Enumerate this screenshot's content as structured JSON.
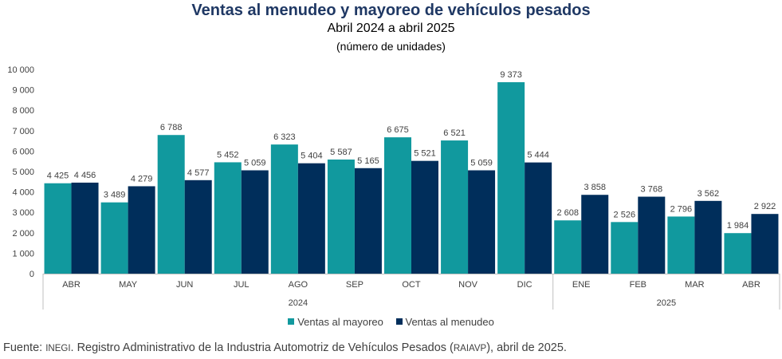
{
  "colors": {
    "mayoreo": "#11999e",
    "menudeo": "#002e5b",
    "title": "#1f3864"
  },
  "header": {
    "title": "Ventas al menudeo y mayoreo de vehículos pesados",
    "subtitle": "Abril 2024 a abril 2025",
    "unit": "(número de unidades)"
  },
  "chart_data": {
    "type": "bar",
    "categories": [
      "ABR",
      "MAY",
      "JUN",
      "JUL",
      "AGO",
      "SEP",
      "OCT",
      "NOV",
      "DIC",
      "ENE",
      "FEB",
      "MAR",
      "ABR"
    ],
    "year_groups": [
      {
        "label": "2024",
        "count": 9
      },
      {
        "label": "2025",
        "count": 4
      }
    ],
    "series": [
      {
        "name": "Ventas al mayoreo",
        "values": [
          4425,
          3489,
          6788,
          5452,
          6323,
          5587,
          6675,
          6521,
          9373,
          2608,
          2526,
          2796,
          1984
        ],
        "labels": [
          "4 425",
          "3 489",
          "6 788",
          "5 452",
          "6 323",
          "5 587",
          "6 675",
          "6 521",
          "9 373",
          "2 608",
          "2 526",
          "2 796",
          "1 984"
        ]
      },
      {
        "name": "Ventas al menudeo",
        "values": [
          4456,
          4279,
          4577,
          5059,
          5404,
          5165,
          5521,
          5059,
          5444,
          3858,
          3768,
          3562,
          2922
        ],
        "labels": [
          "4 456",
          "4 279",
          "4 577",
          "5 059",
          "5 404",
          "5 165",
          "5 521",
          "5 059",
          "5 444",
          "3 858",
          "3 768",
          "3 562",
          "2 922"
        ]
      }
    ],
    "ylim": [
      0,
      10000
    ],
    "y_ticks": [
      0,
      1000,
      2000,
      3000,
      4000,
      5000,
      6000,
      7000,
      8000,
      9000,
      10000
    ],
    "y_tick_labels": [
      "0",
      "1 000",
      "2 000",
      "3 000",
      "4 000",
      "5 000",
      "6 000",
      "7 000",
      "8 000",
      "9 000",
      "10 000"
    ],
    "grid": false,
    "legend_position": "bottom"
  },
  "legend": {
    "items": [
      {
        "label": "Ventas al mayoreo"
      },
      {
        "label": "Ventas al menudeo"
      }
    ]
  },
  "footer": {
    "source_prefix": "Fuente: ",
    "source_inegi": "INEGI",
    "source_mid": ". Registro Administrativo de la Industria Automotriz de Vehículos Pesados (",
    "source_raiavp": "RAIAVP",
    "source_suffix": "), abril de 2025."
  }
}
